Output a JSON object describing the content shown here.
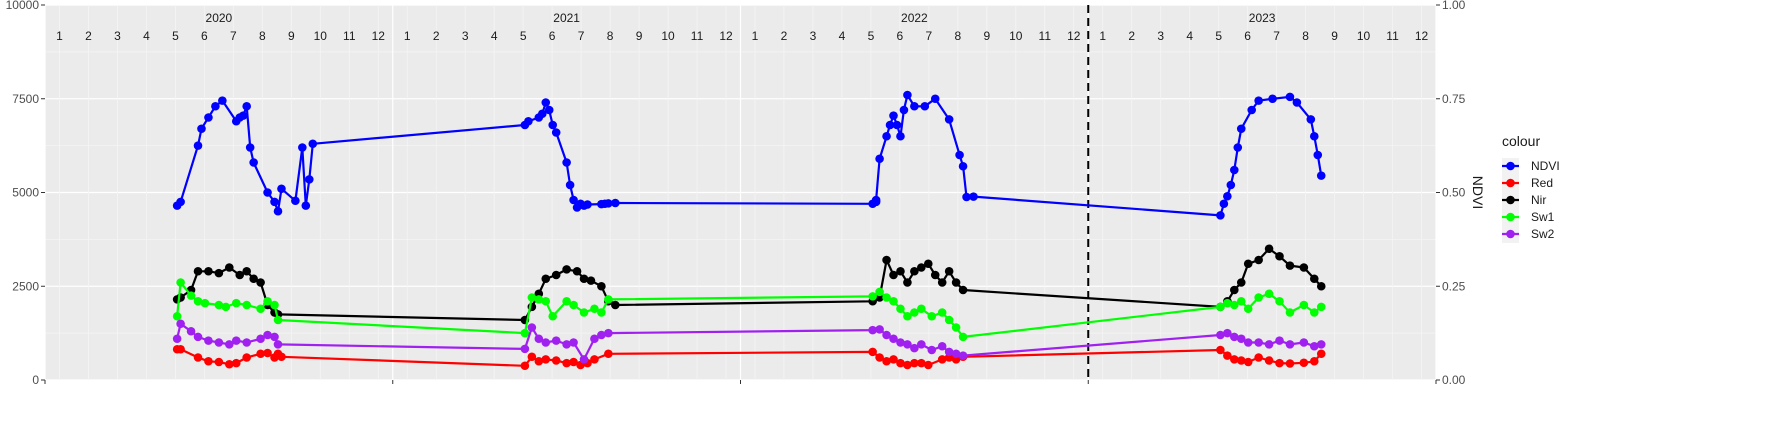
{
  "chart_data": {
    "type": "line",
    "xlabel": "",
    "ylabel": "",
    "y2label": "NDVI",
    "ylim": [
      0,
      10000
    ],
    "y2lim": [
      0,
      1
    ],
    "yticks": [
      "0",
      "2500",
      "5000",
      "7500",
      "10000"
    ],
    "y2ticks": [
      "0.00",
      "0.25",
      "0.50",
      "0.75",
      "1.00"
    ],
    "x_range": [
      2020.0,
      2024.0
    ],
    "years": [
      {
        "label": "2020",
        "at": 2020.5
      },
      {
        "label": "2021",
        "at": 2021.5
      },
      {
        "label": "2022",
        "at": 2022.5
      },
      {
        "label": "2023",
        "at": 2023.5
      }
    ],
    "months": [
      "1",
      "2",
      "3",
      "4",
      "5",
      "6",
      "7",
      "8",
      "9",
      "10",
      "11",
      "12",
      "1",
      "2",
      "3",
      "4",
      "5",
      "6",
      "7",
      "8",
      "9",
      "10",
      "11",
      "12",
      "1",
      "2",
      "3",
      "4",
      "5",
      "6",
      "7",
      "8",
      "9",
      "10",
      "11",
      "12",
      "1",
      "2",
      "3",
      "4",
      "5",
      "6",
      "7",
      "8",
      "9",
      "10",
      "11",
      "12"
    ],
    "vline_x": 2023.0,
    "grid": true,
    "legend": {
      "title": "colour",
      "placement": "right"
    },
    "series": [
      {
        "name": "NDVI",
        "color": "#0000FF",
        "x": [
          2020.38,
          2020.39,
          2020.44,
          2020.45,
          2020.47,
          2020.49,
          2020.51,
          2020.55,
          2020.56,
          2020.57,
          2020.58,
          2020.59,
          2020.6,
          2020.64,
          2020.66,
          2020.67,
          2020.68,
          2020.72,
          2020.74,
          2020.75,
          2020.76,
          2020.77,
          2021.38,
          2021.39,
          2021.42,
          2021.43,
          2021.44,
          2021.45,
          2021.46,
          2021.47,
          2021.5,
          2021.51,
          2021.52,
          2021.53,
          2021.54,
          2021.55,
          2021.56,
          2021.6,
          2021.61,
          2021.62,
          2021.64,
          2022.38,
          2022.39,
          2022.39,
          2022.4,
          2022.42,
          2022.43,
          2022.44,
          2022.45,
          2022.46,
          2022.47,
          2022.48,
          2022.5,
          2022.53,
          2022.56,
          2022.6,
          2022.63,
          2022.64,
          2022.65,
          2022.67,
          2023.38,
          2023.39,
          2023.4,
          2023.41,
          2023.42,
          2023.43,
          2023.44,
          2023.47,
          2023.49,
          2023.53,
          2023.58,
          2023.6,
          2023.64,
          2023.65,
          2023.66,
          2023.67
        ],
        "y": [
          4650,
          4750,
          6250,
          6700,
          7000,
          7300,
          7450,
          6900,
          7000,
          7050,
          7300,
          6200,
          5800,
          5000,
          4750,
          4500,
          5100,
          4780,
          6200,
          4650,
          5350,
          6300,
          6800,
          6900,
          7000,
          7100,
          7400,
          7200,
          6800,
          6600,
          5800,
          5200,
          4800,
          4600,
          4700,
          4650,
          4680,
          4690,
          4700,
          4710,
          4720,
          4700,
          4750,
          4800,
          5900,
          6500,
          6800,
          7050,
          6800,
          6500,
          7200,
          7600,
          7300,
          7300,
          7500,
          6950,
          6000,
          5700,
          4880,
          4890,
          4390,
          4700,
          4900,
          5200,
          5600,
          6200,
          6700,
          7200,
          7450,
          7500,
          7550,
          7400,
          6950,
          6500,
          6000,
          5450
        ]
      },
      {
        "name": "Red",
        "color": "#FF0000",
        "x": [
          2020.38,
          2020.39,
          2020.44,
          2020.47,
          2020.5,
          2020.53,
          2020.55,
          2020.58,
          2020.62,
          2020.64,
          2020.66,
          2020.67,
          2020.68,
          2021.38,
          2021.4,
          2021.42,
          2021.44,
          2021.47,
          2021.5,
          2021.52,
          2021.54,
          2021.56,
          2021.58,
          2021.62,
          2022.38,
          2022.4,
          2022.42,
          2022.44,
          2022.46,
          2022.48,
          2022.5,
          2022.52,
          2022.54,
          2022.58,
          2022.6,
          2022.62,
          2022.64,
          2023.38,
          2023.4,
          2023.42,
          2023.44,
          2023.46,
          2023.49,
          2023.52,
          2023.55,
          2023.58,
          2023.62,
          2023.65,
          2023.67
        ],
        "y": [
          820,
          820,
          600,
          500,
          480,
          420,
          450,
          600,
          700,
          720,
          600,
          700,
          620,
          380,
          620,
          500,
          550,
          520,
          450,
          480,
          400,
          450,
          550,
          700,
          750,
          600,
          500,
          550,
          450,
          400,
          450,
          450,
          400,
          550,
          600,
          550,
          620,
          800,
          650,
          550,
          520,
          480,
          600,
          520,
          450,
          440,
          460,
          500,
          700
        ]
      },
      {
        "name": "Nir",
        "color": "#000000",
        "x": [
          2020.38,
          2020.39,
          2020.42,
          2020.44,
          2020.47,
          2020.5,
          2020.53,
          2020.56,
          2020.58,
          2020.6,
          2020.62,
          2020.64,
          2020.66,
          2020.67,
          2021.38,
          2021.4,
          2021.42,
          2021.44,
          2021.47,
          2021.5,
          2021.53,
          2021.55,
          2021.57,
          2021.6,
          2021.62,
          2021.64,
          2022.38,
          2022.4,
          2022.42,
          2022.44,
          2022.46,
          2022.48,
          2022.5,
          2022.52,
          2022.54,
          2022.56,
          2022.58,
          2022.6,
          2022.62,
          2022.64,
          2023.38,
          2023.4,
          2023.42,
          2023.44,
          2023.46,
          2023.49,
          2023.52,
          2023.55,
          2023.58,
          2023.62,
          2023.65,
          2023.67
        ],
        "y": [
          2150,
          2200,
          2400,
          2900,
          2900,
          2850,
          3000,
          2800,
          2900,
          2700,
          2600,
          2000,
          1800,
          1750,
          1600,
          1950,
          2300,
          2700,
          2800,
          2950,
          2900,
          2700,
          2650,
          2500,
          2100,
          2000,
          2100,
          2200,
          3200,
          2800,
          2900,
          2600,
          2900,
          3000,
          3100,
          2800,
          2600,
          2900,
          2600,
          2400,
          1950,
          2100,
          2400,
          2600,
          3100,
          3200,
          3500,
          3300,
          3050,
          3000,
          2700,
          2500
        ]
      },
      {
        "name": "Sw1",
        "color": "#00FF00",
        "x": [
          2020.38,
          2020.39,
          2020.42,
          2020.44,
          2020.46,
          2020.5,
          2020.52,
          2020.55,
          2020.58,
          2020.62,
          2020.64,
          2020.66,
          2020.67,
          2021.38,
          2021.4,
          2021.42,
          2021.44,
          2021.46,
          2021.5,
          2021.52,
          2021.55,
          2021.58,
          2021.6,
          2021.62,
          2022.38,
          2022.4,
          2022.42,
          2022.44,
          2022.46,
          2022.48,
          2022.5,
          2022.52,
          2022.55,
          2022.58,
          2022.6,
          2022.62,
          2022.64,
          2023.38,
          2023.4,
          2023.42,
          2023.44,
          2023.46,
          2023.49,
          2023.52,
          2023.55,
          2023.58,
          2023.62,
          2023.65,
          2023.67
        ],
        "y": [
          1700,
          2600,
          2250,
          2100,
          2050,
          2000,
          1950,
          2050,
          2000,
          1900,
          2100,
          2000,
          1600,
          1250,
          2200,
          2150,
          2100,
          1700,
          2100,
          2000,
          1800,
          1900,
          1800,
          2150,
          2230,
          2350,
          2200,
          2100,
          1900,
          1700,
          1800,
          1900,
          1700,
          1800,
          1600,
          1400,
          1150,
          1950,
          2050,
          2000,
          2100,
          1900,
          2200,
          2300,
          2100,
          1800,
          2000,
          1800,
          1950
        ]
      },
      {
        "name": "Sw2",
        "color": "#A020F0",
        "x": [
          2020.38,
          2020.39,
          2020.42,
          2020.44,
          2020.47,
          2020.5,
          2020.53,
          2020.55,
          2020.58,
          2020.62,
          2020.64,
          2020.66,
          2020.67,
          2021.38,
          2021.4,
          2021.42,
          2021.44,
          2021.47,
          2021.5,
          2021.52,
          2021.55,
          2021.58,
          2021.6,
          2021.62,
          2022.38,
          2022.4,
          2022.42,
          2022.44,
          2022.46,
          2022.48,
          2022.5,
          2022.52,
          2022.55,
          2022.58,
          2022.6,
          2022.62,
          2022.64,
          2023.38,
          2023.4,
          2023.42,
          2023.44,
          2023.46,
          2023.49,
          2023.52,
          2023.55,
          2023.58,
          2023.62,
          2023.65,
          2023.67
        ],
        "y": [
          1100,
          1500,
          1300,
          1150,
          1050,
          1000,
          950,
          1050,
          1000,
          1100,
          1200,
          1150,
          950,
          830,
          1400,
          1100,
          1000,
          1050,
          950,
          1000,
          550,
          1100,
          1200,
          1250,
          1330,
          1350,
          1200,
          1100,
          1000,
          950,
          850,
          950,
          800,
          900,
          750,
          700,
          650,
          1200,
          1250,
          1150,
          1100,
          1000,
          1000,
          950,
          1050,
          950,
          1000,
          900,
          950
        ]
      }
    ]
  }
}
